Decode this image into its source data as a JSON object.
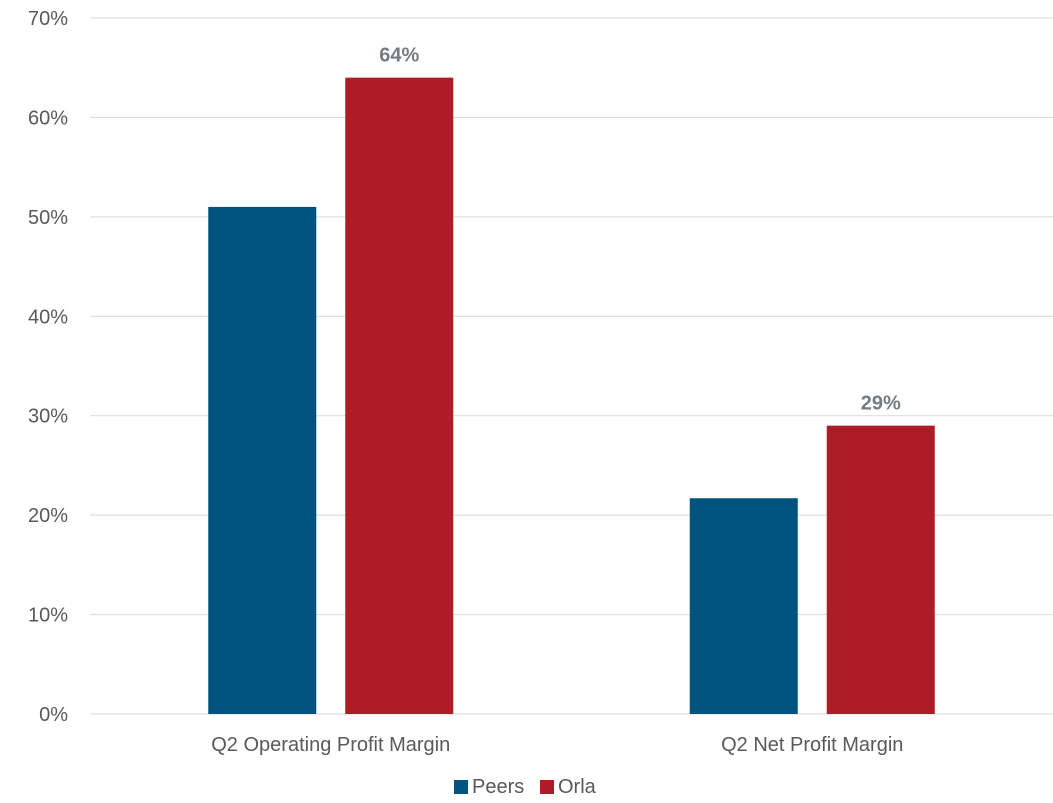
{
  "chart_data": {
    "type": "bar",
    "title": "",
    "xlabel": "",
    "ylabel": "",
    "categories": [
      "Q2 Operating Profit Margin",
      "Q2 Net Profit Margin"
    ],
    "series": [
      {
        "name": "Peers",
        "values": [
          51,
          21.7
        ],
        "data_labels": [
          null,
          null
        ],
        "color": "#00527f"
      },
      {
        "name": "Orla",
        "values": [
          64,
          29
        ],
        "data_labels": [
          "64%",
          "29%"
        ],
        "color": "#ae1c28"
      }
    ],
    "ylim": [
      0,
      70
    ],
    "yticks": [
      0,
      10,
      20,
      30,
      40,
      50,
      60,
      70
    ],
    "ytick_labels": [
      "0%",
      "10%",
      "20%",
      "30%",
      "40%",
      "50%",
      "60%",
      "70%"
    ],
    "grid": true,
    "legend_position": "bottom-center"
  }
}
